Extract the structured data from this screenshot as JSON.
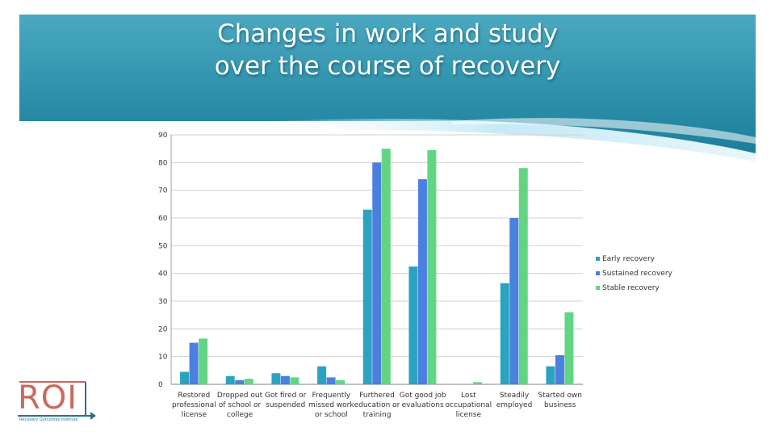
{
  "slide": {
    "title_line1": "Changes in work and study",
    "title_line2": "over the course of recovery"
  },
  "colors": {
    "banner_top": "#4aa9c0",
    "banner_bottom": "#1b7e9b",
    "series": [
      "#2ba3c0",
      "#4b7fe0",
      "#62d583"
    ]
  },
  "logo": {
    "text": "ROI",
    "subtitle": "Recovery Outcomes Institute"
  },
  "chart_data": {
    "type": "bar",
    "title": "",
    "xlabel": "",
    "ylabel": "",
    "ylim": [
      0,
      90
    ],
    "yticks": [
      "0",
      "10",
      "20",
      "30",
      "40",
      "50",
      "60",
      "70",
      "80",
      "90"
    ],
    "grid": true,
    "legend_position": "right",
    "categories": [
      [
        "Restored",
        "professional",
        "license"
      ],
      [
        "Dropped out",
        "of school or",
        "college"
      ],
      [
        "Got fired or",
        "suspended"
      ],
      [
        "Frequently",
        "missed work",
        "or school"
      ],
      [
        "Furthered",
        "education or",
        "training"
      ],
      [
        "Got good job",
        "evaluations"
      ],
      [
        "Lost",
        "occupational",
        "license"
      ],
      [
        "Steadily",
        "employed"
      ],
      [
        "Started own",
        "business"
      ]
    ],
    "series": [
      {
        "name": "Early recovery",
        "values": [
          4.5,
          3,
          4,
          6.5,
          63,
          42.5,
          0,
          36.5,
          6.5
        ]
      },
      {
        "name": "Sustained recovery",
        "values": [
          15,
          1.5,
          3,
          2.5,
          80,
          74,
          0,
          60,
          10.5
        ]
      },
      {
        "name": "Stable recovery",
        "values": [
          16.5,
          2,
          2.5,
          1.5,
          85,
          84.5,
          0.8,
          78,
          26
        ]
      }
    ]
  }
}
